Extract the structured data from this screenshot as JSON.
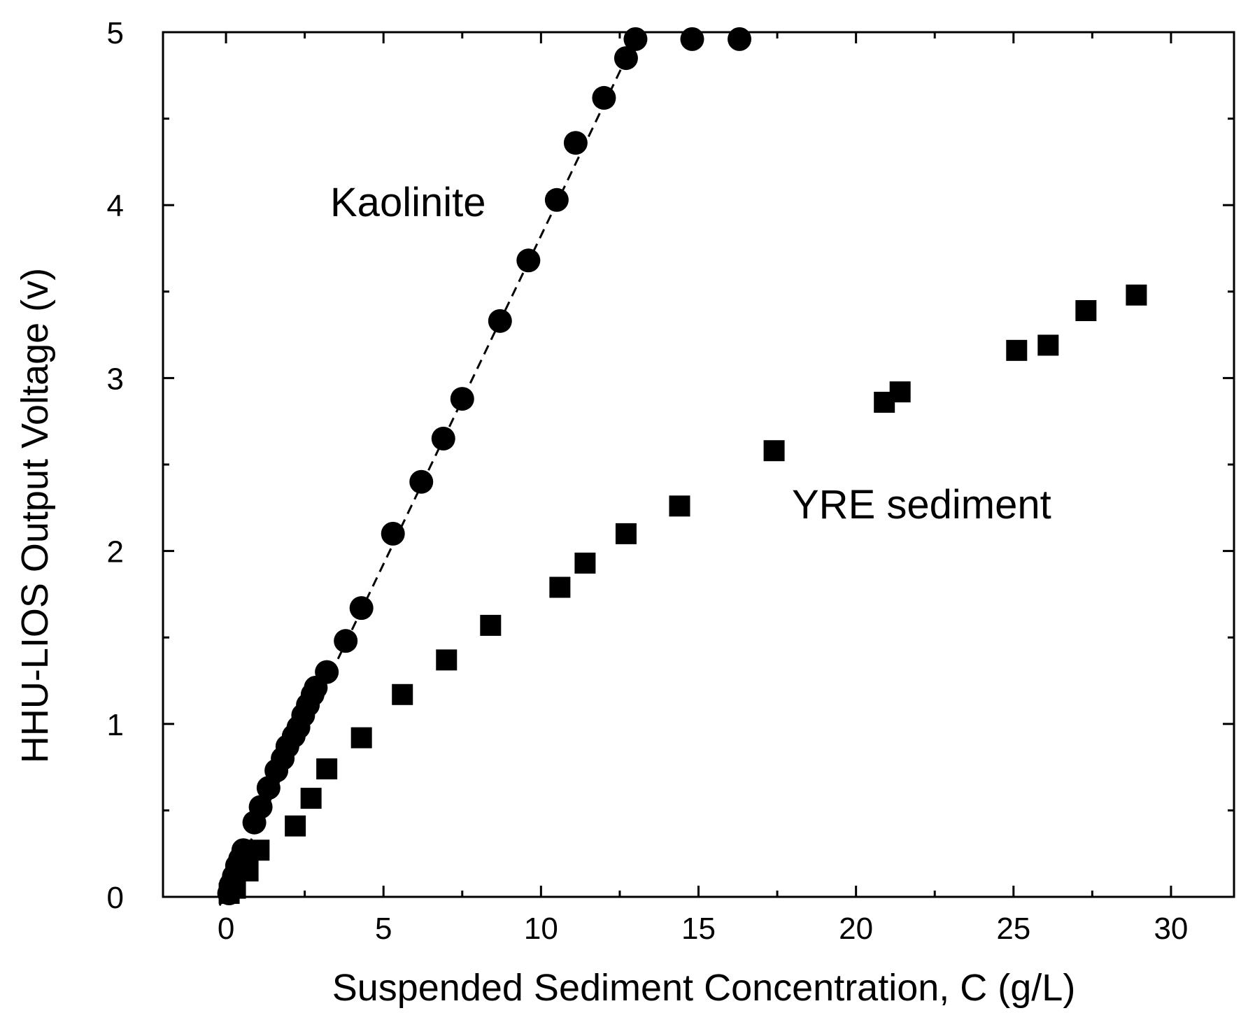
{
  "chart_data": {
    "type": "scatter",
    "title": "",
    "xlabel": "Suspended Sediment Concentration, C (g/L)",
    "ylabel": "HHU-LIOS Output Voltage (v)",
    "xlim": [
      -2,
      32
    ],
    "ylim": [
      0,
      5
    ],
    "xticks": [
      0,
      5,
      10,
      15,
      20,
      25,
      30
    ],
    "yticks": [
      0,
      1,
      2,
      3,
      4,
      5
    ],
    "grid": false,
    "legend": "none",
    "annotations": [
      "Kaolinite",
      "YRE sediment"
    ],
    "series": [
      {
        "name": "Kaolinite",
        "marker": "circle",
        "color": "#000000",
        "points": [
          [
            0.1,
            0.02
          ],
          [
            0.15,
            0.07
          ],
          [
            0.25,
            0.12
          ],
          [
            0.35,
            0.18
          ],
          [
            0.45,
            0.22
          ],
          [
            0.55,
            0.27
          ],
          [
            0.9,
            0.43
          ],
          [
            1.1,
            0.52
          ],
          [
            1.35,
            0.63
          ],
          [
            1.6,
            0.73
          ],
          [
            1.8,
            0.8
          ],
          [
            1.95,
            0.87
          ],
          [
            2.15,
            0.93
          ],
          [
            2.3,
            0.98
          ],
          [
            2.45,
            1.05
          ],
          [
            2.6,
            1.11
          ],
          [
            2.75,
            1.17
          ],
          [
            2.85,
            1.21
          ],
          [
            3.2,
            1.3
          ],
          [
            3.8,
            1.48
          ],
          [
            4.3,
            1.67
          ],
          [
            5.3,
            2.1
          ],
          [
            6.2,
            2.4
          ],
          [
            6.9,
            2.65
          ],
          [
            7.5,
            2.88
          ],
          [
            8.7,
            3.33
          ],
          [
            9.6,
            3.68
          ],
          [
            10.5,
            4.03
          ],
          [
            11.1,
            4.36
          ],
          [
            12.0,
            4.62
          ],
          [
            12.7,
            4.85
          ],
          [
            13.0,
            4.96
          ],
          [
            14.8,
            4.96
          ],
          [
            16.3,
            4.96
          ]
        ]
      },
      {
        "name": "YRE sediment",
        "marker": "square",
        "color": "#000000",
        "points": [
          [
            0.1,
            0.02
          ],
          [
            0.3,
            0.05
          ],
          [
            0.7,
            0.15
          ],
          [
            1.05,
            0.27
          ],
          [
            2.2,
            0.41
          ],
          [
            2.7,
            0.57
          ],
          [
            3.2,
            0.74
          ],
          [
            4.3,
            0.92
          ],
          [
            5.6,
            1.17
          ],
          [
            7.0,
            1.37
          ],
          [
            8.4,
            1.57
          ],
          [
            10.6,
            1.79
          ],
          [
            11.4,
            1.93
          ],
          [
            12.7,
            2.1
          ],
          [
            14.4,
            2.26
          ],
          [
            17.4,
            2.58
          ],
          [
            20.9,
            2.86
          ],
          [
            21.4,
            2.92
          ],
          [
            25.1,
            3.16
          ],
          [
            26.1,
            3.19
          ],
          [
            27.3,
            3.39
          ],
          [
            28.9,
            3.48
          ]
        ]
      }
    ],
    "fit_line": {
      "series": "Kaolinite",
      "style": "dashed",
      "from": [
        -0.2,
        -0.05
      ],
      "to": [
        13.1,
        5.0
      ]
    }
  }
}
